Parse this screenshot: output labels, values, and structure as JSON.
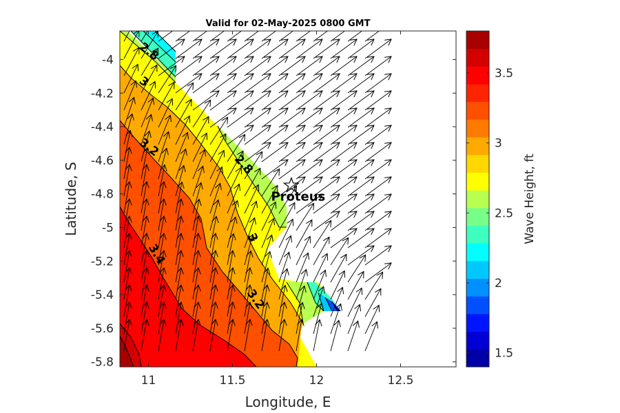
{
  "chart_data": {
    "type": "contour",
    "title": "Valid for 02-May-2025 0800 GMT",
    "xlabel": "Longitude, E",
    "ylabel": "Latitude, S",
    "xlim": [
      10.83,
      12.83
    ],
    "ylim": [
      -5.83,
      -3.83
    ],
    "x_ticks": [
      11,
      11.5,
      12,
      12.5
    ],
    "x_tick_labels": [
      "11",
      "11.5",
      "12",
      "12.5"
    ],
    "y_ticks": [
      -4,
      -4.2,
      -4.4,
      -4.6,
      -4.8,
      -5,
      -5.2,
      -5.4,
      -5.6,
      -5.8
    ],
    "y_tick_labels": [
      "-4",
      "-4.2",
      "-4.4",
      "-4.6",
      "-4.8",
      "-5",
      "-5.2",
      "-5.4",
      "-5.6",
      "-5.8"
    ],
    "colorbar": {
      "label": "Wave Height, ft",
      "range": [
        1.4,
        3.8
      ],
      "ticks": [
        1.5,
        2,
        2.5,
        3,
        3.5
      ],
      "tick_labels": [
        "1.5",
        "2",
        "2.5",
        "3",
        "3.5"
      ],
      "levels": [
        1.4,
        1.5,
        1.6,
        1.7,
        1.8,
        1.9,
        2.0,
        2.1,
        2.2,
        2.3,
        2.4,
        2.5,
        2.6,
        2.7,
        2.8,
        2.9,
        3.0,
        3.1,
        3.2,
        3.3,
        3.4,
        3.5,
        3.6,
        3.7,
        3.8
      ],
      "colors": [
        "#0000a8",
        "#0000d4",
        "#0014ff",
        "#0050ff",
        "#0090ff",
        "#00c8ff",
        "#00ffff",
        "#3cffc0",
        "#78ff88",
        "#b8ff50",
        "#ffff00",
        "#ffd800",
        "#ffaa00",
        "#ff7a00",
        "#ff5000",
        "#ff2400",
        "#ff0000",
        "#d40000",
        "#a80000"
      ]
    },
    "contour_labels": [
      {
        "text": "2.8",
        "lon": 10.99,
        "lat": -3.97
      },
      {
        "text": "3",
        "lon": 10.96,
        "lat": -4.15
      },
      {
        "text": "3.2",
        "lon": 10.99,
        "lat": -4.54
      },
      {
        "text": "2.8",
        "lon": 11.55,
        "lat": -4.64
      },
      {
        "text": "3",
        "lon": 11.6,
        "lat": -5.07
      },
      {
        "text": "3.4",
        "lon": 11.03,
        "lat": -5.17
      },
      {
        "text": "3.2",
        "lon": 11.62,
        "lat": -5.44
      }
    ],
    "marker": {
      "label": "Proteus",
      "lon": 11.85,
      "lat": -4.75,
      "symbol": "star"
    },
    "wave_direction": "toward NE (deep water) and N (nearshore south-west)"
  }
}
